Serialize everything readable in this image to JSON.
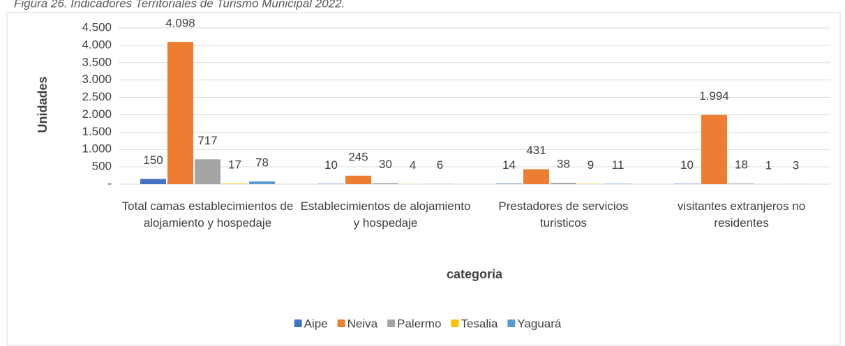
{
  "chart_data": {
    "type": "bar",
    "caption": "Figura 26. Indicadores Territoriales de Turismo Municipal 2022.",
    "ylabel": "Unidades",
    "xlabel": "categoria",
    "categories": [
      "Total camas establecimientos de alojamiento y hospedaje",
      "Establecimientos de alojamiento y hospedaje",
      "Prestadores de servicios turisticos",
      "visitantes extranjeros no residentes"
    ],
    "series": [
      {
        "name": "Aipe",
        "color": "#4472c4",
        "values": [
          150,
          10,
          14,
          10
        ]
      },
      {
        "name": "Neiva",
        "color": "#ed7d31",
        "values": [
          4098,
          245,
          431,
          1994
        ],
        "value_labels": [
          "4.098",
          "245",
          "431",
          "1.994"
        ]
      },
      {
        "name": "Palermo",
        "color": "#a5a5a5",
        "values": [
          717,
          30,
          38,
          18
        ]
      },
      {
        "name": "Tesalia",
        "color": "#ffc000",
        "values": [
          17,
          4,
          9,
          1
        ]
      },
      {
        "name": "Yaguará",
        "color": "#5b9bd5",
        "values": [
          78,
          6,
          11,
          3
        ]
      }
    ],
    "ylim": [
      0,
      4500
    ],
    "yticks": [
      {
        "value": 0,
        "label": "-"
      },
      500,
      {
        "value": 1000,
        "label": "1.000"
      },
      {
        "value": 1500,
        "label": "1.500"
      },
      {
        "value": 2000,
        "label": "2.000"
      },
      {
        "value": 2500,
        "label": "2.500"
      },
      {
        "value": 3000,
        "label": "3.000"
      },
      {
        "value": 3500,
        "label": "3.500"
      },
      {
        "value": 4000,
        "label": "4.000"
      },
      {
        "value": 4500,
        "label": "4.500"
      }
    ],
    "grid": true,
    "legend": "bottom"
  }
}
